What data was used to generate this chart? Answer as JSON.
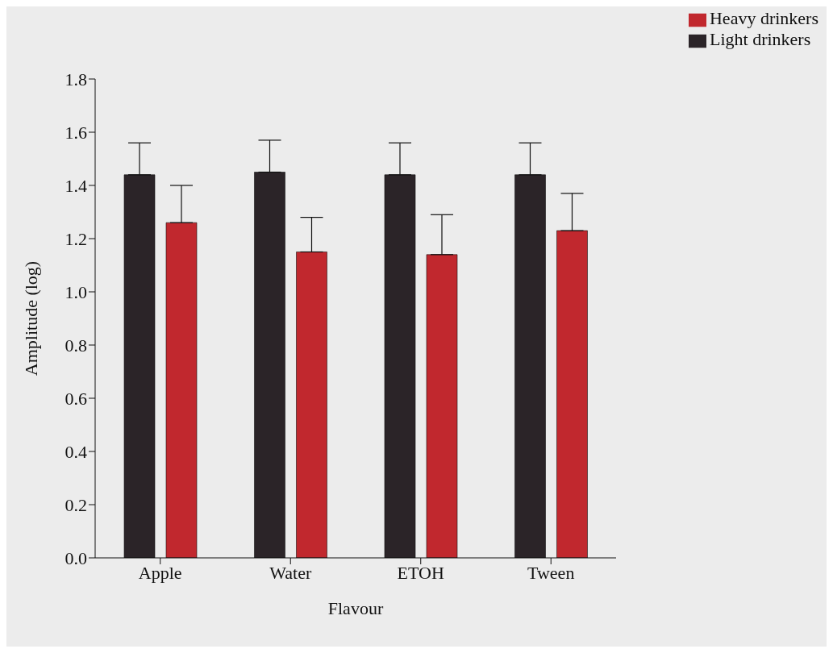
{
  "chart_data": {
    "type": "bar",
    "xlabel": "Flavour",
    "ylabel": "Amplitude (log)",
    "categories": [
      "Apple",
      "Water",
      "ETOH",
      "Tween"
    ],
    "series": [
      {
        "name": "Light drinkers",
        "color": "#2b2428",
        "values": [
          1.44,
          1.45,
          1.44,
          1.44
        ],
        "errors": [
          [
            1.44,
            1.56
          ],
          [
            1.45,
            1.57
          ],
          [
            1.44,
            1.56
          ],
          [
            1.44,
            1.56
          ]
        ]
      },
      {
        "name": "Heavy drinkers",
        "color": "#c1282e",
        "values": [
          1.26,
          1.15,
          1.14,
          1.23
        ],
        "errors": [
          [
            1.26,
            1.4
          ],
          [
            1.15,
            1.28
          ],
          [
            1.14,
            1.29
          ],
          [
            1.23,
            1.37
          ]
        ]
      }
    ],
    "ylim": [
      0,
      1.8
    ],
    "yticks": [
      {
        "value": 0,
        "label": "0.0"
      },
      0.2,
      0.4,
      0.6,
      0.8,
      {
        "value": 1,
        "label": "1.0"
      },
      1.2,
      1.4,
      1.6,
      1.8
    ],
    "grid": false,
    "legend": "top right"
  }
}
